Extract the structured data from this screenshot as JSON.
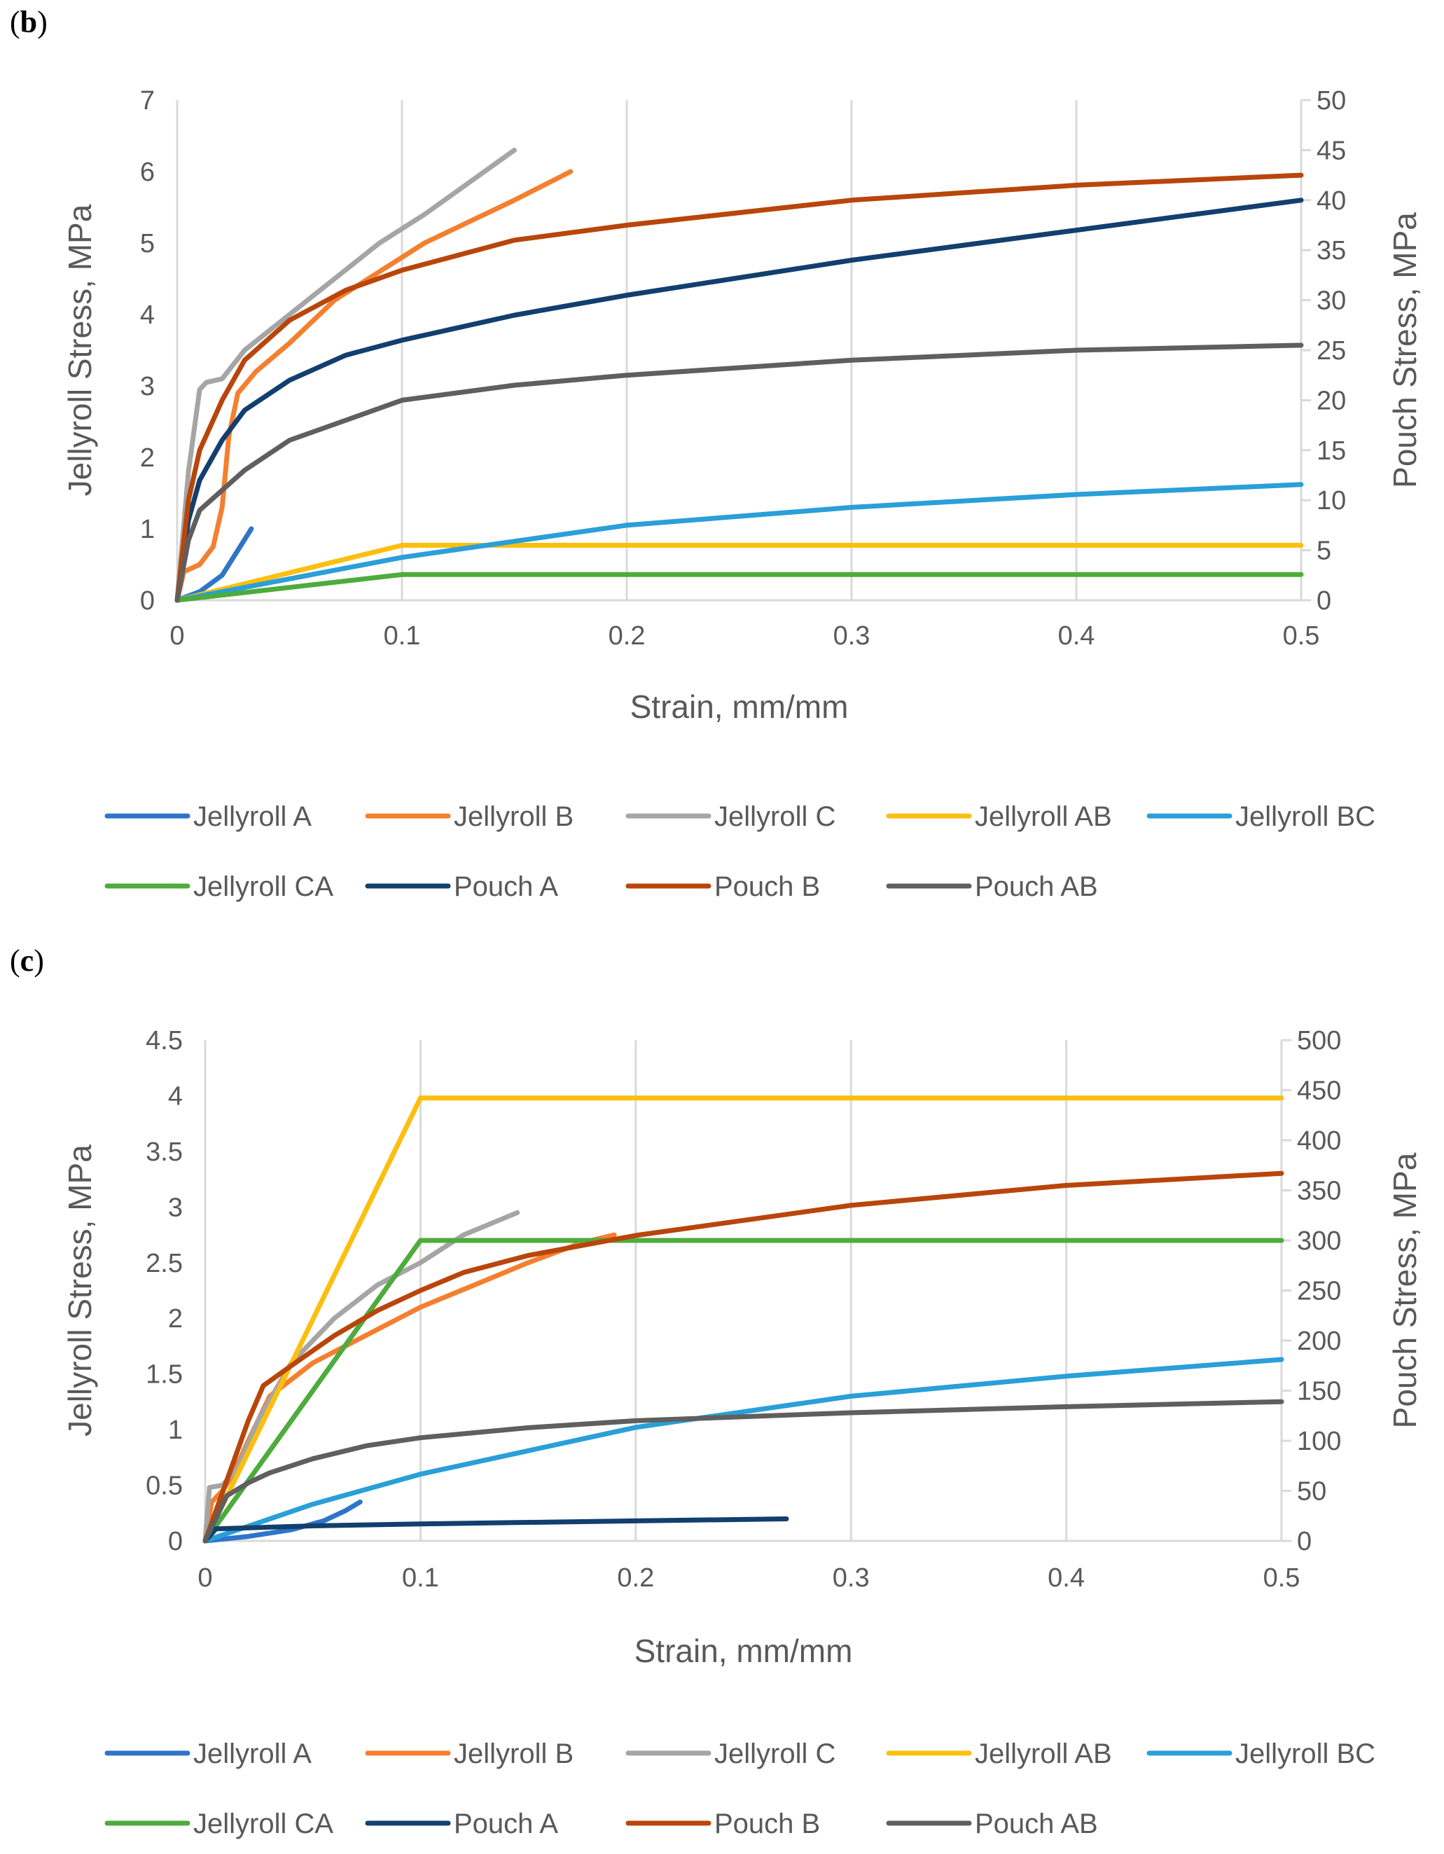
{
  "colors": {
    "Jellyroll A": "#2e75c7",
    "Jellyroll B": "#f47f2f",
    "Jellyroll C": "#a5a5a5",
    "Jellyroll AB": "#fcbf0f",
    "Jellyroll BC": "#2a9fd8",
    "Jellyroll CA": "#4eab3d",
    "Pouch A": "#123f6e",
    "Pouch B": "#b8460b",
    "Pouch AB": "#5f5f5f"
  },
  "chart_data": [
    {
      "panel_label": "b",
      "type": "line",
      "xlabel": "Strain, mm/mm",
      "ylabel": "Jellyroll Stress, MPa",
      "y2label": "Pouch Stress, MPa",
      "xlim": [
        0,
        0.5
      ],
      "ylim": [
        0,
        7
      ],
      "y2lim": [
        0,
        50
      ],
      "xticks": [
        "0",
        "0.1",
        "0.2",
        "0.3",
        "0.4",
        "0.5"
      ],
      "yticks": [
        "0",
        "1",
        "2",
        "3",
        "4",
        "5",
        "6",
        "7"
      ],
      "y2ticks": [
        "0",
        "5",
        "10",
        "15",
        "20",
        "25",
        "30",
        "35",
        "40",
        "45",
        "50"
      ],
      "legend": [
        "Jellyroll A",
        "Jellyroll B",
        "Jellyroll C",
        "Jellyroll AB",
        "Jellyroll BC",
        "Jellyroll CA",
        "Pouch A",
        "Pouch B",
        "Pouch AB"
      ],
      "series": [
        {
          "name": "Jellyroll A",
          "axis": "left",
          "x": [
            0,
            0.01,
            0.02,
            0.027,
            0.033
          ],
          "y": [
            0,
            0.12,
            0.35,
            0.7,
            1.0
          ]
        },
        {
          "name": "Jellyroll B",
          "axis": "left",
          "x": [
            0,
            0.003,
            0.01,
            0.016,
            0.02,
            0.023,
            0.027,
            0.035,
            0.05,
            0.07,
            0.09,
            0.11,
            0.13,
            0.15,
            0.175
          ],
          "y": [
            0,
            0.4,
            0.5,
            0.75,
            1.3,
            2.3,
            2.9,
            3.2,
            3.6,
            4.2,
            4.6,
            5.0,
            5.3,
            5.6,
            6.0
          ]
        },
        {
          "name": "Jellyroll C",
          "axis": "left",
          "x": [
            0,
            0.005,
            0.01,
            0.013,
            0.02,
            0.03,
            0.05,
            0.07,
            0.09,
            0.11,
            0.13,
            0.15
          ],
          "y": [
            0,
            1.8,
            2.95,
            3.05,
            3.1,
            3.5,
            4.0,
            4.5,
            5.0,
            5.4,
            5.85,
            6.3
          ]
        },
        {
          "name": "Jellyroll AB",
          "axis": "left",
          "x": [
            0,
            0.1,
            0.5
          ],
          "y": [
            0,
            0.77,
            0.77
          ]
        },
        {
          "name": "Jellyroll BC",
          "axis": "left",
          "x": [
            0,
            0.05,
            0.1,
            0.2,
            0.3,
            0.4,
            0.5
          ],
          "y": [
            0,
            0.3,
            0.6,
            1.05,
            1.3,
            1.48,
            1.62
          ]
        },
        {
          "name": "Jellyroll CA",
          "axis": "left",
          "x": [
            0,
            0.1,
            0.5
          ],
          "y": [
            0,
            0.36,
            0.36
          ]
        },
        {
          "name": "Pouch A",
          "axis": "right",
          "x": [
            0,
            0.005,
            0.01,
            0.02,
            0.03,
            0.05,
            0.075,
            0.1,
            0.15,
            0.2,
            0.3,
            0.4,
            0.5
          ],
          "y": [
            0,
            8,
            12,
            16,
            19,
            22,
            24.5,
            26,
            28.5,
            30.5,
            34,
            37,
            40
          ]
        },
        {
          "name": "Pouch B",
          "axis": "right",
          "x": [
            0,
            0.005,
            0.01,
            0.02,
            0.03,
            0.05,
            0.075,
            0.1,
            0.15,
            0.2,
            0.3,
            0.4,
            0.5
          ],
          "y": [
            0,
            10,
            15,
            20,
            24,
            28,
            31,
            33,
            36,
            37.5,
            40,
            41.5,
            42.5
          ]
        },
        {
          "name": "Pouch AB",
          "axis": "right",
          "x": [
            0,
            0.005,
            0.01,
            0.02,
            0.03,
            0.05,
            0.075,
            0.1,
            0.15,
            0.2,
            0.3,
            0.4,
            0.5
          ],
          "y": [
            0,
            6,
            9,
            11,
            13,
            16,
            18,
            20,
            21.5,
            22.5,
            24,
            25,
            25.5
          ]
        }
      ]
    },
    {
      "panel_label": "c",
      "type": "line",
      "xlabel": "Strain, mm/mm",
      "ylabel": "Jellyroll Stress, MPa",
      "y2label": "Pouch Stress, MPa",
      "xlim": [
        0,
        0.5
      ],
      "ylim": [
        0,
        4.5
      ],
      "y2lim": [
        0,
        500
      ],
      "xticks": [
        "0",
        "0.1",
        "0.2",
        "0.3",
        "0.4",
        "0.5"
      ],
      "yticks": [
        "0",
        "0.5",
        "1",
        "1.5",
        "2",
        "2.5",
        "3",
        "3.5",
        "4",
        "4.5"
      ],
      "y2ticks": [
        "0",
        "50",
        "100",
        "150",
        "200",
        "250",
        "300",
        "350",
        "400",
        "450",
        "500"
      ],
      "legend": [
        "Jellyroll A",
        "Jellyroll B",
        "Jellyroll C",
        "Jellyroll AB",
        "Jellyroll BC",
        "Jellyroll CA",
        "Pouch A",
        "Pouch B",
        "Pouch AB"
      ],
      "series": [
        {
          "name": "Jellyroll A",
          "axis": "left",
          "x": [
            0,
            0.02,
            0.04,
            0.055,
            0.065,
            0.072
          ],
          "y": [
            0,
            0.04,
            0.1,
            0.18,
            0.27,
            0.35
          ]
        },
        {
          "name": "Jellyroll B",
          "axis": "left",
          "x": [
            0,
            0.003,
            0.008,
            0.013,
            0.02,
            0.03,
            0.05,
            0.075,
            0.1,
            0.125,
            0.15,
            0.175,
            0.19
          ],
          "y": [
            0,
            0.35,
            0.45,
            0.6,
            0.9,
            1.3,
            1.6,
            1.85,
            2.1,
            2.3,
            2.5,
            2.68,
            2.75
          ]
        },
        {
          "name": "Jellyroll C",
          "axis": "left",
          "x": [
            0,
            0.002,
            0.008,
            0.015,
            0.025,
            0.04,
            0.06,
            0.08,
            0.1,
            0.12,
            0.145
          ],
          "y": [
            0,
            0.48,
            0.5,
            0.65,
            1.1,
            1.6,
            2.0,
            2.3,
            2.5,
            2.75,
            2.95
          ]
        },
        {
          "name": "Jellyroll AB",
          "axis": "left",
          "x": [
            0,
            0.1,
            0.5
          ],
          "y": [
            0,
            3.98,
            3.98
          ]
        },
        {
          "name": "Jellyroll BC",
          "axis": "left",
          "x": [
            0,
            0.05,
            0.1,
            0.2,
            0.3,
            0.4,
            0.5
          ],
          "y": [
            0,
            0.33,
            0.6,
            1.02,
            1.3,
            1.48,
            1.63
          ]
        },
        {
          "name": "Jellyroll CA",
          "axis": "left",
          "x": [
            0,
            0.1,
            0.5
          ],
          "y": [
            0,
            2.7,
            2.7
          ]
        },
        {
          "name": "Pouch A",
          "axis": "right",
          "x": [
            0,
            0.005,
            0.05,
            0.1,
            0.2,
            0.27
          ],
          "y": [
            0,
            12,
            15,
            17,
            20,
            22
          ]
        },
        {
          "name": "Pouch B",
          "axis": "right",
          "x": [
            0,
            0.005,
            0.01,
            0.02,
            0.027,
            0.04,
            0.06,
            0.08,
            0.1,
            0.12,
            0.15,
            0.2,
            0.3,
            0.4,
            0.5
          ],
          "y": [
            0,
            30,
            60,
            120,
            155,
            175,
            205,
            230,
            250,
            268,
            285,
            305,
            335,
            355,
            367
          ]
        },
        {
          "name": "Pouch AB",
          "axis": "right",
          "x": [
            0,
            0.01,
            0.02,
            0.03,
            0.05,
            0.075,
            0.1,
            0.15,
            0.2,
            0.3,
            0.4,
            0.5
          ],
          "y": [
            0,
            45,
            58,
            68,
            82,
            95,
            103,
            113,
            120,
            128,
            134,
            139
          ]
        }
      ]
    }
  ]
}
